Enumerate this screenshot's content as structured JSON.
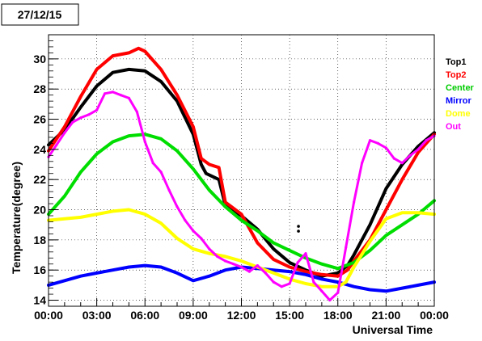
{
  "chart_data": {
    "type": "line",
    "title": "27/12/15",
    "xlabel": "Universal Time",
    "ylabel": "Temperature(degree)",
    "xlim": [
      0,
      24
    ],
    "ylim": [
      13.6,
      31.6
    ],
    "x_ticks": [
      "00:00",
      "03:00",
      "06:00",
      "09:00",
      "12:00",
      "15:00",
      "18:00",
      "21:00",
      "00:00"
    ],
    "y_ticks": [
      14,
      16,
      18,
      20,
      22,
      24,
      26,
      28,
      30
    ],
    "grid": true,
    "legend_position": "right",
    "series": [
      {
        "name": "Top1",
        "color": "#000000",
        "points": [
          [
            0,
            24.3
          ],
          [
            1,
            25.3
          ],
          [
            2,
            26.8
          ],
          [
            3,
            28.2
          ],
          [
            4,
            29.1
          ],
          [
            5,
            29.3
          ],
          [
            6,
            29.2
          ],
          [
            7,
            28.5
          ],
          [
            8,
            27.2
          ],
          [
            9,
            25.0
          ],
          [
            9.5,
            23.0
          ],
          [
            9.8,
            22.4
          ],
          [
            10.6,
            22.0
          ],
          [
            11,
            20.3
          ],
          [
            12,
            19.6
          ],
          [
            13,
            18.7
          ],
          [
            14,
            17.4
          ],
          [
            15,
            16.5
          ],
          [
            16,
            16.0
          ],
          [
            17,
            15.6
          ],
          [
            18,
            15.8
          ],
          [
            18.6,
            16.3
          ],
          [
            19,
            17.0
          ],
          [
            20,
            19.0
          ],
          [
            21,
            21.4
          ],
          [
            22,
            23.0
          ],
          [
            23,
            24.2
          ],
          [
            24,
            25.1
          ]
        ]
      },
      {
        "name": "Top2",
        "color": "#ff0000",
        "points": [
          [
            0,
            23.9
          ],
          [
            1,
            25.5
          ],
          [
            2,
            27.5
          ],
          [
            3,
            29.3
          ],
          [
            4,
            30.2
          ],
          [
            5,
            30.4
          ],
          [
            5.6,
            30.7
          ],
          [
            6,
            30.5
          ],
          [
            7,
            29.3
          ],
          [
            8,
            27.6
          ],
          [
            9,
            25.5
          ],
          [
            9.5,
            23.4
          ],
          [
            10,
            23.0
          ],
          [
            10.6,
            22.8
          ],
          [
            11,
            20.5
          ],
          [
            12,
            19.7
          ],
          [
            13,
            17.8
          ],
          [
            14,
            16.7
          ],
          [
            15,
            16.2
          ],
          [
            16,
            15.9
          ],
          [
            17,
            15.7
          ],
          [
            18,
            15.6
          ],
          [
            18.6,
            16.0
          ],
          [
            19,
            16.6
          ],
          [
            20,
            18.0
          ],
          [
            21,
            20.0
          ],
          [
            22,
            22.0
          ],
          [
            23,
            23.8
          ],
          [
            24,
            25.0
          ]
        ]
      },
      {
        "name": "Center",
        "color": "#00dd00",
        "points": [
          [
            0,
            19.7
          ],
          [
            1,
            20.9
          ],
          [
            2,
            22.5
          ],
          [
            3,
            23.7
          ],
          [
            4,
            24.5
          ],
          [
            5,
            24.9
          ],
          [
            6,
            25.0
          ],
          [
            7,
            24.7
          ],
          [
            8,
            23.9
          ],
          [
            9,
            22.7
          ],
          [
            10,
            21.3
          ],
          [
            11,
            20.2
          ],
          [
            12,
            19.3
          ],
          [
            13,
            18.6
          ],
          [
            14,
            17.8
          ],
          [
            15,
            17.3
          ],
          [
            16,
            16.8
          ],
          [
            17,
            16.4
          ],
          [
            18,
            16.1
          ],
          [
            19,
            16.5
          ],
          [
            20,
            17.3
          ],
          [
            21,
            18.3
          ],
          [
            22,
            19.0
          ],
          [
            23,
            19.7
          ],
          [
            24,
            20.6
          ]
        ]
      },
      {
        "name": "Mirror",
        "color": "#0000ff",
        "points": [
          [
            0,
            15.0
          ],
          [
            1,
            15.3
          ],
          [
            2,
            15.6
          ],
          [
            3,
            15.8
          ],
          [
            4,
            16.0
          ],
          [
            5,
            16.2
          ],
          [
            6,
            16.3
          ],
          [
            7,
            16.2
          ],
          [
            8,
            15.8
          ],
          [
            9,
            15.3
          ],
          [
            10,
            15.6
          ],
          [
            11,
            16.0
          ],
          [
            12,
            16.2
          ],
          [
            13,
            16.1
          ],
          [
            14,
            16.0
          ],
          [
            15,
            15.9
          ],
          [
            16,
            15.7
          ],
          [
            17,
            15.4
          ],
          [
            18,
            15.2
          ],
          [
            19,
            14.9
          ],
          [
            20,
            14.7
          ],
          [
            21,
            14.6
          ],
          [
            22,
            14.8
          ],
          [
            23,
            15.0
          ],
          [
            24,
            15.2
          ]
        ]
      },
      {
        "name": "Dome",
        "color": "#ffff00",
        "points": [
          [
            0,
            19.3
          ],
          [
            1,
            19.4
          ],
          [
            2,
            19.5
          ],
          [
            3,
            19.7
          ],
          [
            4,
            19.9
          ],
          [
            5,
            20.0
          ],
          [
            6,
            19.7
          ],
          [
            7,
            19.1
          ],
          [
            8,
            18.1
          ],
          [
            9,
            17.4
          ],
          [
            10,
            17.1
          ],
          [
            11,
            16.9
          ],
          [
            12,
            16.6
          ],
          [
            13,
            16.2
          ],
          [
            14,
            15.8
          ],
          [
            15,
            15.4
          ],
          [
            16,
            15.1
          ],
          [
            17,
            14.9
          ],
          [
            18,
            14.9
          ],
          [
            18.5,
            15.2
          ],
          [
            19,
            16.2
          ],
          [
            20,
            17.9
          ],
          [
            21,
            19.4
          ],
          [
            22,
            19.8
          ],
          [
            23,
            19.8
          ],
          [
            24,
            19.7
          ]
        ]
      },
      {
        "name": "Out",
        "color": "#ff00ff",
        "points": [
          [
            0,
            23.5
          ],
          [
            0.5,
            24.3
          ],
          [
            1,
            25.1
          ],
          [
            1.5,
            25.8
          ],
          [
            2,
            26.1
          ],
          [
            2.5,
            26.3
          ],
          [
            3,
            26.6
          ],
          [
            3.5,
            27.7
          ],
          [
            4,
            27.8
          ],
          [
            4.5,
            27.6
          ],
          [
            5,
            27.4
          ],
          [
            5.5,
            26.5
          ],
          [
            6,
            24.5
          ],
          [
            6.5,
            23.1
          ],
          [
            7,
            22.5
          ],
          [
            7.5,
            21.3
          ],
          [
            8,
            20.2
          ],
          [
            8.5,
            19.3
          ],
          [
            9,
            18.6
          ],
          [
            9.5,
            18.1
          ],
          [
            10,
            17.4
          ],
          [
            10.5,
            16.9
          ],
          [
            11,
            16.6
          ],
          [
            11.5,
            16.4
          ],
          [
            12,
            16.2
          ],
          [
            12.5,
            15.9
          ],
          [
            13,
            16.3
          ],
          [
            13.5,
            15.8
          ],
          [
            14,
            15.2
          ],
          [
            14.5,
            14.9
          ],
          [
            15,
            15.1
          ],
          [
            15.5,
            16.5
          ],
          [
            16,
            17.1
          ],
          [
            16.5,
            15.2
          ],
          [
            17,
            14.6
          ],
          [
            17.5,
            14.0
          ],
          [
            18,
            14.5
          ],
          [
            18.5,
            17.5
          ],
          [
            19,
            20.5
          ],
          [
            19.5,
            23.1
          ],
          [
            20,
            24.6
          ],
          [
            20.5,
            24.4
          ],
          [
            21,
            24.1
          ],
          [
            21.5,
            23.4
          ],
          [
            22,
            23.1
          ],
          [
            22.5,
            23.6
          ],
          [
            23,
            24.0
          ],
          [
            23.5,
            24.6
          ],
          [
            24,
            24.9
          ]
        ]
      }
    ],
    "annotations": [
      {
        "text": "",
        "x": 15.55,
        "y": 18.9,
        "color": "#000000"
      }
    ]
  }
}
